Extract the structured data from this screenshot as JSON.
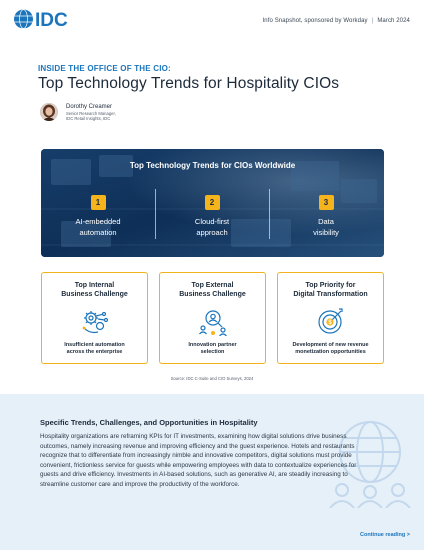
{
  "header": {
    "logo_text": "IDC",
    "meta_left": "Info Snapshot, sponsored by Workday",
    "meta_sep": "|",
    "meta_right": "March 2024"
  },
  "kicker": "INSIDE THE OFFICE OF THE CIO:",
  "title": "Top Technology Trends for Hospitality CIOs",
  "author": {
    "name": "Dorothy Creamer",
    "role_line1": "Senior Research Manager,",
    "role_line2": "IDC Retail Insights, IDC"
  },
  "hero": {
    "title": "Top Technology Trends for CIOs Worldwide",
    "trends": [
      {
        "num": "1",
        "line1": "AI-embedded",
        "line2": "automation"
      },
      {
        "num": "2",
        "line1": "Cloud-first",
        "line2": "approach"
      },
      {
        "num": "3",
        "line1": "Data",
        "line2": "visibility"
      }
    ]
  },
  "cards": [
    {
      "title1": "Top Internal",
      "title2": "Business Challenge",
      "text1": "Insufficient automation",
      "text2": "across the enterprise",
      "icon": "gears-network-icon"
    },
    {
      "title1": "Top External",
      "title2": "Business Challenge",
      "text1": "Innovation partner",
      "text2": "selection",
      "icon": "team-search-icon"
    },
    {
      "title1": "Top Priority for",
      "title2": "Digital Transformation",
      "text1": "Development of new revenue",
      "text2": "monetization opportunities",
      "icon": "target-dollar-icon"
    }
  ],
  "source": "Source: IDC C-Suite and CIO Surveys, 2024",
  "section": {
    "title": "Specific Trends, Challenges, and Opportunities in Hospitality",
    "body": "Hospitality organizations are reframing KPIs for IT investments, examining how digital solutions drive business outcomes, namely increasing revenue and improving efficiency and the guest experience. Hotels and restaurants recognize that to differentiate from increasingly nimble and innovative competitors, digital solutions must provide convenient, frictionless service for guests while empowering employees with data to contextualize experiences for guests and drive efficiency. Investments in AI-based solutions, such as generative AI, are steadily increasing to streamline customer care and improve the productivity of the workforce.",
    "continue": "Continue reading >"
  },
  "colors": {
    "accent_blue": "#1b75bc",
    "accent_yellow": "#f5b41b",
    "hero_navy": "#0d2f57",
    "bottom_bg": "#e6f0f9"
  }
}
